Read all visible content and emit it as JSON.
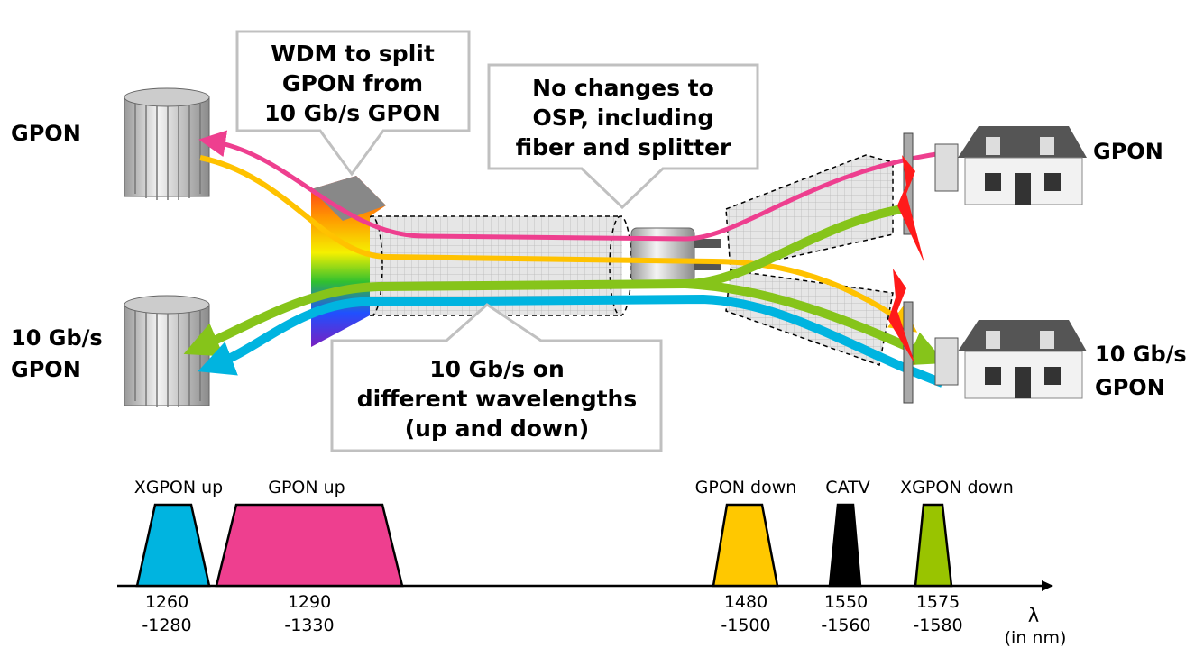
{
  "left_labels": {
    "top": "GPON",
    "bottom_line1": "10 Gb/s",
    "bottom_line2": "GPON"
  },
  "right_labels": {
    "top": "GPON",
    "bottom_line1": "10 Gb/s",
    "bottom_line2": "GPON"
  },
  "callouts": {
    "wdm": [
      "WDM to split",
      "GPON from",
      "10 Gb/s GPON"
    ],
    "osp": [
      "No changes to",
      "OSP, including",
      "fiber and splitter"
    ],
    "wavelengths": [
      "10 Gb/s on",
      "different wavelengths",
      "(up and down)"
    ]
  },
  "signal_colors": {
    "gpon_up": "#ee3f8f",
    "gpon_down": "#ffc200",
    "xgpon_up": "#00b4e0",
    "xgpon_down": "#86c41a",
    "catv": "#000000"
  },
  "spectrum": {
    "axis_symbol": "λ",
    "axis_unit": "(in nm)",
    "bands": [
      {
        "name": "XGPON up",
        "range_line1": "1260",
        "range_line2": "-1280",
        "color": "#00b4e0"
      },
      {
        "name": "GPON up",
        "range_line1": "1290",
        "range_line2": "-1330",
        "color": "#ee3f8f"
      },
      {
        "name": "GPON down",
        "range_line1": "1480",
        "range_line2": "-1500",
        "color": "#ffc800"
      },
      {
        "name": "CATV",
        "range_line1": "1550",
        "range_line2": "-1560",
        "color": "#000000"
      },
      {
        "name": "XGPON down",
        "range_line1": "1575",
        "range_line2": "-1580",
        "color": "#99c400"
      }
    ]
  }
}
